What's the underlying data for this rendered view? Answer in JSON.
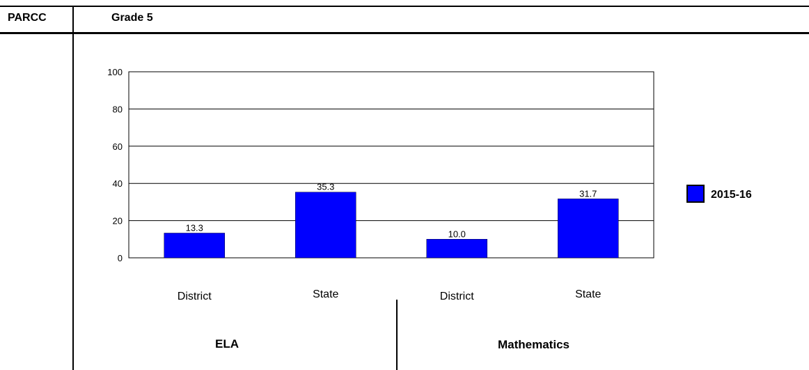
{
  "header": {
    "left_label": "PARCC",
    "right_label": "Grade 5"
  },
  "groups": [
    "ELA",
    "Mathematics"
  ],
  "colors": {
    "bar": "#0000ff",
    "bar_stroke": "#000033",
    "grid": "#000000"
  },
  "chart_data": {
    "type": "bar",
    "categories": [
      "District",
      "State",
      "District",
      "State"
    ],
    "category_groups": [
      "ELA",
      "ELA",
      "Mathematics",
      "Mathematics"
    ],
    "series": [
      {
        "name": "2015-16",
        "values": [
          13.3,
          35.3,
          10.0,
          31.7
        ]
      }
    ],
    "data_labels": [
      "13.3",
      "35.3",
      "10.0",
      "31.7"
    ],
    "ylim": [
      0,
      100
    ],
    "yticks": [
      0,
      20,
      40,
      60,
      80,
      100
    ],
    "grid": true,
    "legend": "right",
    "title": "",
    "xlabel": "",
    "ylabel": ""
  }
}
